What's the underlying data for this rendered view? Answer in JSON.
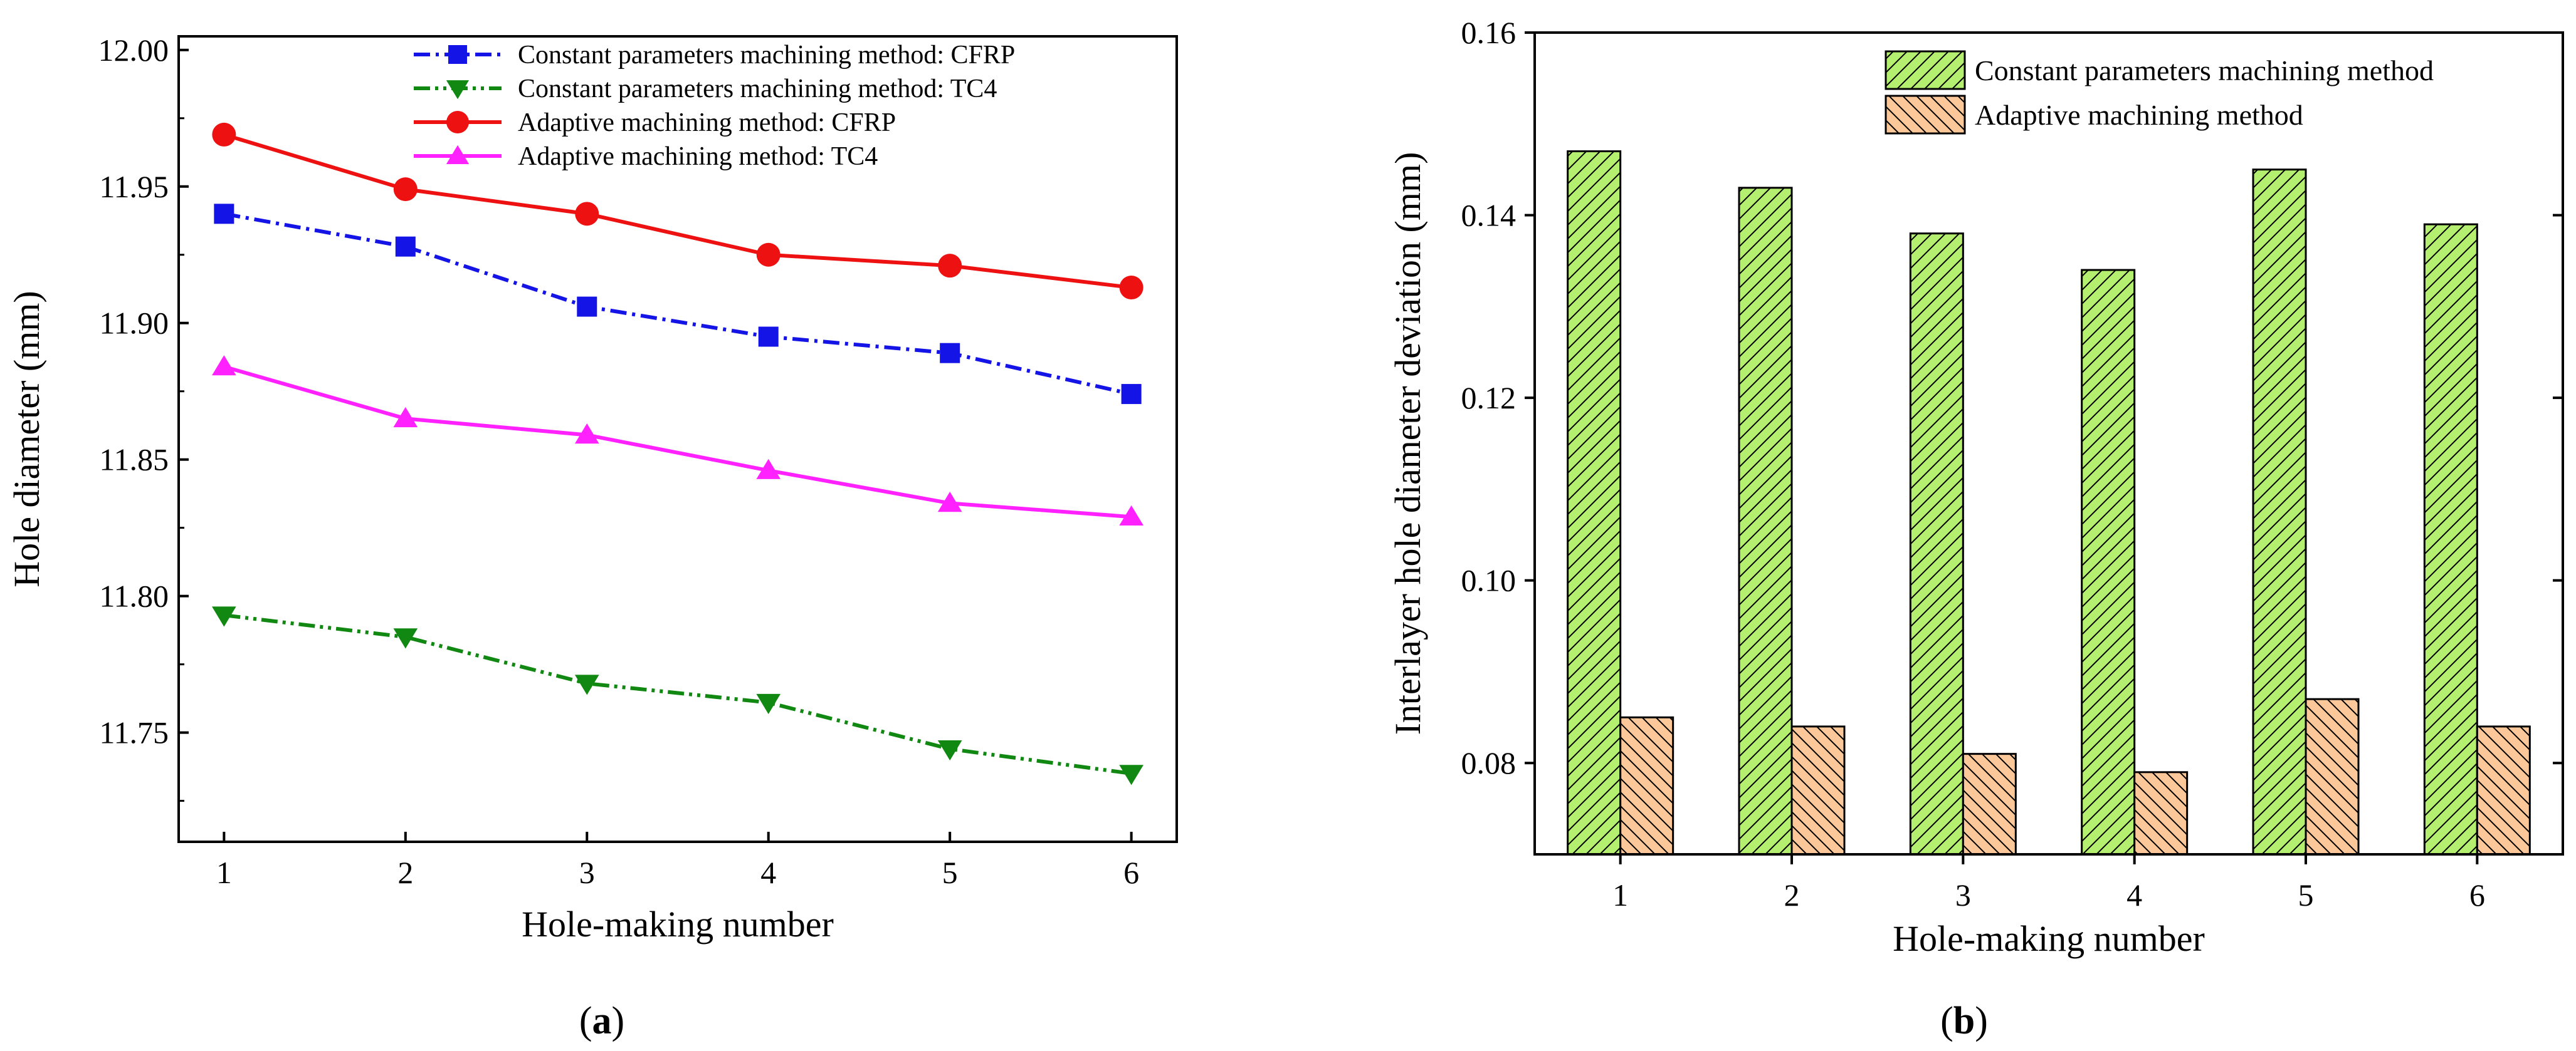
{
  "chart_data": [
    {
      "type": "line",
      "panel_label": "a",
      "xlabel": "Hole-making number",
      "ylabel": "Hole diameter (mm)",
      "x": [
        1,
        2,
        3,
        4,
        5,
        6
      ],
      "x_ticks": [
        "1",
        "2",
        "3",
        "4",
        "5",
        "6"
      ],
      "ylim": [
        11.71,
        12.005
      ],
      "y_ticks": [
        "11.75",
        "11.80",
        "11.85",
        "11.90",
        "11.95",
        "12.00"
      ],
      "legend_position": "top-right",
      "series": [
        {
          "name": "Constant parameters machining method: CFRP",
          "values": [
            11.94,
            11.928,
            11.906,
            11.895,
            11.889,
            11.874
          ],
          "color": "#1414e6",
          "marker": "square",
          "dash": "dash-dot"
        },
        {
          "name": "Constant parameters machining method: TC4",
          "values": [
            11.793,
            11.785,
            11.768,
            11.761,
            11.744,
            11.735
          ],
          "color": "#118811",
          "marker": "triangle-down",
          "dash": "dash-dot-dot"
        },
        {
          "name": "Adaptive machining method: CFRP",
          "values": [
            11.969,
            11.949,
            11.94,
            11.925,
            11.921,
            11.913
          ],
          "color": "#ee1111",
          "marker": "circle",
          "dash": "solid"
        },
        {
          "name": "Adaptive machining method: TC4",
          "values": [
            11.884,
            11.865,
            11.859,
            11.846,
            11.834,
            11.829
          ],
          "color": "#ff22ff",
          "marker": "triangle-up",
          "dash": "solid"
        }
      ]
    },
    {
      "type": "bar",
      "panel_label": "b",
      "xlabel": "Hole-making number",
      "ylabel": "Interlayer hole diameter deviation (mm)",
      "categories": [
        "1",
        "2",
        "3",
        "4",
        "5",
        "6"
      ],
      "ylim": [
        0.07,
        0.16
      ],
      "y_ticks": [
        "0.08",
        "0.10",
        "0.12",
        "0.14",
        "0.16"
      ],
      "legend_position": "top-right",
      "series": [
        {
          "name": "Constant parameters machining method",
          "values": [
            0.147,
            0.143,
            0.138,
            0.134,
            0.145,
            0.139
          ],
          "color": "#b5ef6f",
          "hatch": "forward-diagonal"
        },
        {
          "name": "Adaptive machining method",
          "values": [
            0.085,
            0.084,
            0.081,
            0.079,
            0.087,
            0.084
          ],
          "color": "#fcc89a",
          "hatch": "back-diagonal"
        }
      ]
    }
  ]
}
